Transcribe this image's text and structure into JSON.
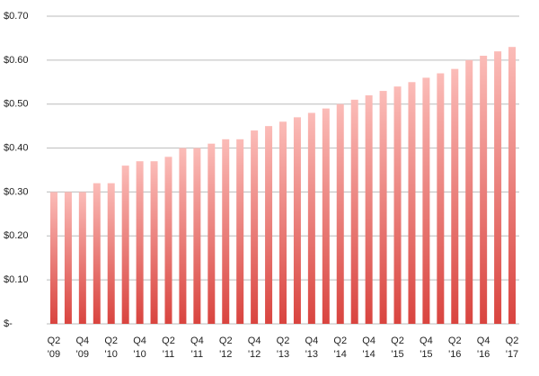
{
  "chart_data": {
    "type": "bar",
    "categories": [
      "Q2\n'09",
      null,
      "Q4\n'09",
      null,
      "Q2\n'10",
      null,
      "Q4\n'10",
      null,
      "Q2\n'11",
      null,
      "Q4\n'11",
      null,
      "Q2\n'12",
      null,
      "Q4\n'12",
      null,
      "Q2\n'13",
      null,
      "Q4\n'13",
      null,
      "Q2\n'14",
      null,
      "Q4\n'14",
      null,
      "Q2\n'15",
      null,
      "Q4\n'15",
      null,
      "Q2\n'16",
      null,
      "Q4\n'16",
      null,
      "Q2\n'17"
    ],
    "values": [
      0.3,
      0.3,
      0.3,
      0.32,
      0.32,
      0.36,
      0.37,
      0.37,
      0.38,
      0.4,
      0.4,
      0.41,
      0.42,
      0.42,
      0.44,
      0.45,
      0.46,
      0.47,
      0.48,
      0.49,
      0.5,
      0.51,
      0.52,
      0.53,
      0.54,
      0.55,
      0.56,
      0.57,
      0.58,
      0.6,
      0.61,
      0.62,
      0.63
    ],
    "gradient": [
      "#fbbcb8",
      "#d9443f"
    ],
    "ylim": [
      0,
      0.7
    ],
    "yticks": [
      {
        "value": 0,
        "label": "$-"
      },
      {
        "value": 0.1,
        "label": "$0.10"
      },
      {
        "value": 0.2,
        "label": "$0.20"
      },
      {
        "value": 0.3,
        "label": "$0.30"
      },
      {
        "value": 0.4,
        "label": "$0.40"
      },
      {
        "value": 0.5,
        "label": "$0.50"
      },
      {
        "value": 0.6,
        "label": "$0.60"
      },
      {
        "value": 0.7,
        "label": "$0.70"
      }
    ],
    "grid": true
  }
}
